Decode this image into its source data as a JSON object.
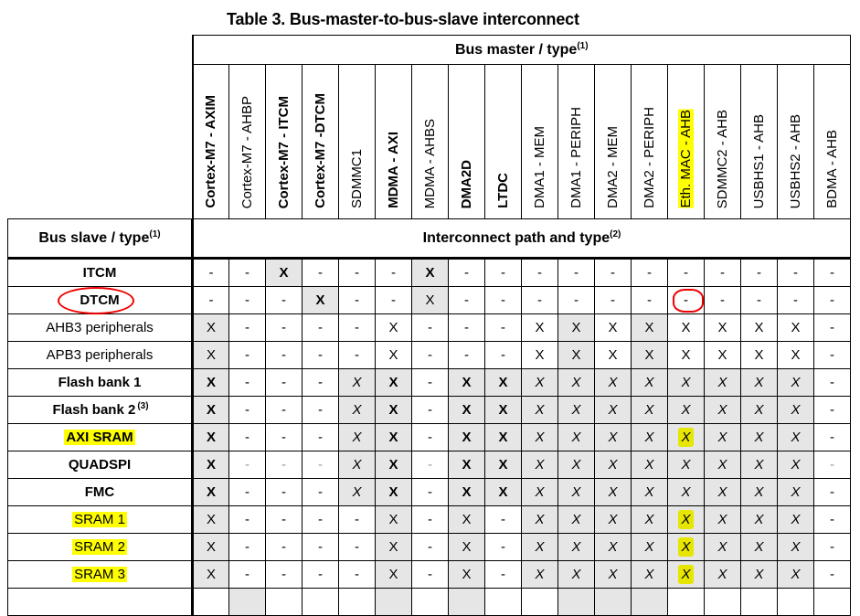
{
  "title": "Table 3. Bus-master-to-bus-slave interconnect",
  "bus_master_header": "Bus master / type",
  "bus_master_note": "(1)",
  "bus_slave_header": "Bus slave / type",
  "bus_slave_note": "(1)",
  "path_header": "Interconnect path and type",
  "path_note": "(2)",
  "colors": {
    "shade": "#e6e6e6",
    "highlight": "#ffff00",
    "annotation": "#e00000"
  },
  "masters": [
    {
      "label": "Cortex-M7 - AXIM",
      "bold": true
    },
    {
      "label": "Cortex-M7 - AHBP",
      "bold": false
    },
    {
      "label": "Cortex-M7 - ITCM",
      "bold": true
    },
    {
      "label": "Cortex-M7 -DTCM",
      "bold": true
    },
    {
      "label": "SDMMC1",
      "bold": false
    },
    {
      "label": "MDMA - AXI",
      "bold": true
    },
    {
      "label": "MDMA - AHBS",
      "bold": false
    },
    {
      "label": "DMA2D",
      "bold": true
    },
    {
      "label": "LTDC",
      "bold": true
    },
    {
      "label": "DMA1 - MEM",
      "bold": false
    },
    {
      "label": "DMA1 - PERIPH",
      "bold": false
    },
    {
      "label": "DMA2 - MEM",
      "bold": false
    },
    {
      "label": "DMA2 - PERIPH",
      "bold": false
    },
    {
      "label": "Eth. MAC - AHB",
      "bold": false,
      "highlight": true
    },
    {
      "label": "SDMMC2 - AHB",
      "bold": false
    },
    {
      "label": "USBHS1 - AHB",
      "bold": false
    },
    {
      "label": "USBHS2 - AHB",
      "bold": false
    },
    {
      "label": "BDMA - AHB",
      "bold": false
    }
  ],
  "rows": [
    {
      "label": "ITCM",
      "bold": true,
      "cells": [
        "-",
        "-",
        "X",
        "-",
        "-",
        "-",
        "X",
        "-",
        "-",
        "-",
        "-",
        "-",
        "-",
        "-",
        "-",
        "-",
        "-",
        "-"
      ],
      "style": [
        "n",
        "n",
        "b",
        "n",
        "n",
        "n",
        "b",
        "n",
        "n",
        "n",
        "n",
        "n",
        "n",
        "n",
        "n",
        "n",
        "n",
        "n"
      ],
      "shaded": [
        0,
        0,
        1,
        0,
        0,
        0,
        1,
        0,
        0,
        0,
        0,
        0,
        0,
        0,
        0,
        0,
        0,
        0
      ]
    },
    {
      "label": "DTCM",
      "bold": true,
      "circled": true,
      "cells": [
        "-",
        "-",
        "-",
        "X",
        "-",
        "-",
        "X",
        "-",
        "-",
        "-",
        "-",
        "-",
        "-",
        "-",
        "-",
        "-",
        "-",
        "-"
      ],
      "style": [
        "n",
        "n",
        "n",
        "b",
        "n",
        "n",
        "n",
        "n",
        "n",
        "n",
        "n",
        "n",
        "n",
        "n",
        "n",
        "n",
        "n",
        "n"
      ],
      "shaded": [
        0,
        0,
        0,
        1,
        0,
        0,
        1,
        0,
        0,
        0,
        0,
        0,
        0,
        0,
        0,
        0,
        0,
        0
      ],
      "circled_cell": 13
    },
    {
      "label": "AHB3 peripherals",
      "bold": false,
      "cells": [
        "X",
        "-",
        "-",
        "-",
        "-",
        "X",
        "-",
        "-",
        "-",
        "X",
        "X",
        "X",
        "X",
        "X",
        "X",
        "X",
        "X",
        "-"
      ],
      "style": [
        "n",
        "n",
        "n",
        "n",
        "n",
        "n",
        "n",
        "n",
        "n",
        "n",
        "n",
        "n",
        "n",
        "n",
        "n",
        "n",
        "n",
        "n"
      ],
      "shaded": [
        1,
        0,
        0,
        0,
        0,
        0,
        0,
        0,
        0,
        0,
        1,
        0,
        1,
        0,
        0,
        0,
        0,
        0
      ]
    },
    {
      "label": "APB3 peripherals",
      "bold": false,
      "cells": [
        "X",
        "-",
        "-",
        "-",
        "-",
        "X",
        "-",
        "-",
        "-",
        "X",
        "X",
        "X",
        "X",
        "X",
        "X",
        "X",
        "X",
        "-"
      ],
      "style": [
        "n",
        "n",
        "n",
        "n",
        "n",
        "n",
        "n",
        "n",
        "n",
        "n",
        "n",
        "n",
        "n",
        "n",
        "n",
        "n",
        "n",
        "n"
      ],
      "shaded": [
        1,
        0,
        0,
        0,
        0,
        0,
        0,
        0,
        0,
        0,
        1,
        0,
        1,
        0,
        0,
        0,
        0,
        0
      ]
    },
    {
      "label": "Flash bank 1",
      "bold": true,
      "cells": [
        "X",
        "-",
        "-",
        "-",
        "X",
        "X",
        "-",
        "X",
        "X",
        "X",
        "X",
        "X",
        "X",
        "X",
        "X",
        "X",
        "X",
        "-"
      ],
      "style": [
        "b",
        "n",
        "n",
        "n",
        "i",
        "b",
        "n",
        "b",
        "b",
        "i",
        "i",
        "i",
        "i",
        "i",
        "i",
        "i",
        "i",
        "n"
      ],
      "shaded": [
        1,
        0,
        0,
        0,
        1,
        1,
        0,
        1,
        1,
        1,
        1,
        1,
        1,
        1,
        1,
        1,
        1,
        0
      ]
    },
    {
      "label": "Flash bank 2",
      "note": "(3)",
      "bold": true,
      "cells": [
        "X",
        "-",
        "-",
        "-",
        "X",
        "X",
        "-",
        "X",
        "X",
        "X",
        "X",
        "X",
        "X",
        "X",
        "X",
        "X",
        "X",
        "-"
      ],
      "style": [
        "b",
        "n",
        "n",
        "n",
        "i",
        "b",
        "n",
        "b",
        "b",
        "i",
        "i",
        "i",
        "i",
        "i",
        "i",
        "i",
        "i",
        "n"
      ],
      "shaded": [
        1,
        0,
        0,
        0,
        1,
        1,
        0,
        1,
        1,
        1,
        1,
        1,
        1,
        1,
        1,
        1,
        1,
        0
      ]
    },
    {
      "label": "AXI SRAM",
      "bold": true,
      "highlight": true,
      "cells": [
        "X",
        "-",
        "-",
        "-",
        "X",
        "X",
        "-",
        "X",
        "X",
        "X",
        "X",
        "X",
        "X",
        "X",
        "X",
        "X",
        "X",
        "-"
      ],
      "style": [
        "b",
        "n",
        "n",
        "n",
        "i",
        "b",
        "n",
        "b",
        "b",
        "i",
        "i",
        "i",
        "i",
        "i",
        "i",
        "i",
        "i",
        "n"
      ],
      "shaded": [
        1,
        0,
        0,
        0,
        1,
        1,
        0,
        1,
        1,
        1,
        1,
        1,
        1,
        1,
        1,
        1,
        1,
        0
      ],
      "highlight_cell": 13
    },
    {
      "label": "QUADSPI",
      "bold": true,
      "cells": [
        "X",
        "-",
        "-",
        "-",
        "X",
        "X",
        "-",
        "X",
        "X",
        "X",
        "X",
        "X",
        "X",
        "X",
        "X",
        "X",
        "X",
        "-"
      ],
      "style": [
        "b",
        "g",
        "g",
        "g",
        "i",
        "b",
        "g",
        "b",
        "b",
        "i",
        "i",
        "i",
        "i",
        "i",
        "i",
        "i",
        "i",
        "g"
      ],
      "shaded": [
        1,
        0,
        0,
        0,
        1,
        1,
        0,
        1,
        1,
        1,
        1,
        1,
        1,
        1,
        1,
        1,
        1,
        0
      ]
    },
    {
      "label": "FMC",
      "bold": true,
      "cells": [
        "X",
        "-",
        "-",
        "-",
        "X",
        "X",
        "-",
        "X",
        "X",
        "X",
        "X",
        "X",
        "X",
        "X",
        "X",
        "X",
        "X",
        "-"
      ],
      "style": [
        "b",
        "n",
        "n",
        "n",
        "i",
        "b",
        "n",
        "b",
        "b",
        "i",
        "i",
        "i",
        "i",
        "i",
        "i",
        "i",
        "i",
        "n"
      ],
      "shaded": [
        1,
        0,
        0,
        0,
        1,
        1,
        0,
        1,
        1,
        1,
        1,
        1,
        1,
        1,
        1,
        1,
        1,
        0
      ]
    },
    {
      "label": "SRAM 1",
      "bold": false,
      "highlight": true,
      "cells": [
        "X",
        "-",
        "-",
        "-",
        "-",
        "X",
        "-",
        "X",
        "-",
        "X",
        "X",
        "X",
        "X",
        "X",
        "X",
        "X",
        "X",
        "-"
      ],
      "style": [
        "n",
        "n",
        "n",
        "n",
        "n",
        "n",
        "n",
        "n",
        "n",
        "i",
        "i",
        "i",
        "i",
        "i",
        "i",
        "i",
        "i",
        "n"
      ],
      "shaded": [
        1,
        0,
        0,
        0,
        0,
        1,
        0,
        1,
        0,
        1,
        1,
        1,
        1,
        1,
        1,
        1,
        1,
        0
      ],
      "highlight_cell": 13
    },
    {
      "label": "SRAM 2",
      "bold": false,
      "highlight": true,
      "cells": [
        "X",
        "-",
        "-",
        "-",
        "-",
        "X",
        "-",
        "X",
        "-",
        "X",
        "X",
        "X",
        "X",
        "X",
        "X",
        "X",
        "X",
        "-"
      ],
      "style": [
        "n",
        "n",
        "n",
        "n",
        "n",
        "n",
        "n",
        "n",
        "n",
        "i",
        "i",
        "i",
        "i",
        "i",
        "i",
        "i",
        "i",
        "n"
      ],
      "shaded": [
        1,
        0,
        0,
        0,
        0,
        1,
        0,
        1,
        0,
        1,
        1,
        1,
        1,
        1,
        1,
        1,
        1,
        0
      ],
      "highlight_cell": 13
    },
    {
      "label": "SRAM 3",
      "bold": false,
      "highlight": true,
      "cells": [
        "X",
        "-",
        "-",
        "-",
        "-",
        "X",
        "-",
        "X",
        "-",
        "X",
        "X",
        "X",
        "X",
        "X",
        "X",
        "X",
        "X",
        "-"
      ],
      "style": [
        "n",
        "n",
        "n",
        "n",
        "n",
        "n",
        "n",
        "n",
        "n",
        "i",
        "i",
        "i",
        "i",
        "i",
        "i",
        "i",
        "i",
        "n"
      ],
      "shaded": [
        1,
        0,
        0,
        0,
        0,
        1,
        0,
        1,
        0,
        1,
        1,
        1,
        1,
        1,
        1,
        1,
        1,
        0
      ],
      "highlight_cell": 13
    }
  ]
}
